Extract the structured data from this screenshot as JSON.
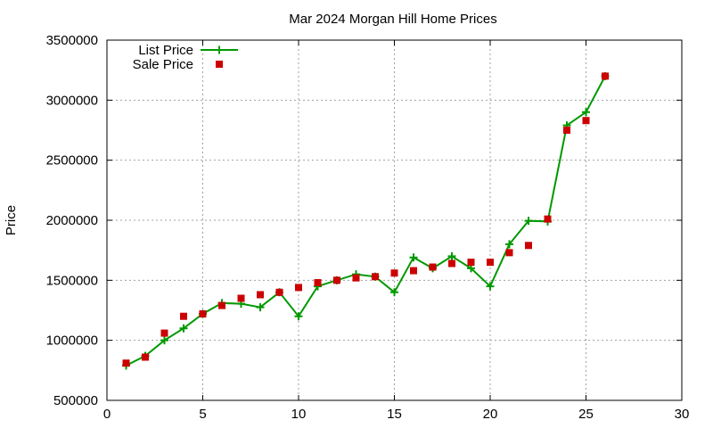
{
  "chart_data": {
    "type": "line",
    "title": "Mar 2024 Morgan Hill Home Prices",
    "xlabel": "",
    "ylabel": "Price",
    "xlim": [
      0,
      30
    ],
    "ylim": [
      500000,
      3500000
    ],
    "xticks": [
      0,
      5,
      10,
      15,
      20,
      25,
      30
    ],
    "yticks": [
      500000,
      1000000,
      1500000,
      2000000,
      2500000,
      3000000,
      3500000
    ],
    "grid": true,
    "legend_position": "top-left",
    "series": [
      {
        "name": "List Price",
        "style": "line-with-plus-markers",
        "color": "#009900",
        "x": [
          1,
          2,
          3,
          4,
          5,
          6,
          7,
          8,
          9,
          10,
          11,
          12,
          13,
          14,
          15,
          16,
          17,
          18,
          19,
          20,
          21,
          22,
          23,
          24,
          25,
          26
        ],
        "values": [
          790000,
          870000,
          1000000,
          1100000,
          1220000,
          1310000,
          1305000,
          1275000,
          1400000,
          1200000,
          1450000,
          1500000,
          1550000,
          1530000,
          1400000,
          1690000,
          1600000,
          1700000,
          1600000,
          1450000,
          1800000,
          1995000,
          1990000,
          2790000,
          2900000,
          3200000
        ]
      },
      {
        "name": "Sale Price",
        "style": "square-markers",
        "color": "#cc0000",
        "x": [
          1,
          2,
          3,
          4,
          5,
          6,
          7,
          8,
          9,
          10,
          11,
          12,
          13,
          14,
          15,
          16,
          17,
          18,
          19,
          20,
          21,
          22,
          23,
          24,
          25,
          26
        ],
        "values": [
          810000,
          860000,
          1060000,
          1200000,
          1220000,
          1290000,
          1350000,
          1380000,
          1400000,
          1440000,
          1480000,
          1500000,
          1520000,
          1530000,
          1560000,
          1580000,
          1610000,
          1640000,
          1650000,
          1650000,
          1730000,
          1790000,
          2010000,
          2750000,
          2830000,
          3200000
        ]
      }
    ]
  }
}
